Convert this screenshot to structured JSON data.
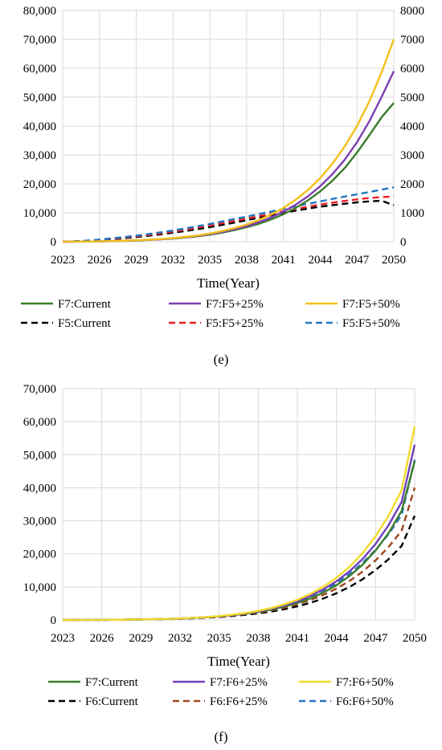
{
  "chart_data": [
    {
      "id": "e",
      "type": "line",
      "panel_label": "(e)",
      "xlabel": "Time(Year)",
      "x": [
        2023,
        2024,
        2025,
        2026,
        2027,
        2028,
        2029,
        2030,
        2031,
        2032,
        2033,
        2034,
        2035,
        2036,
        2037,
        2038,
        2039,
        2040,
        2041,
        2042,
        2043,
        2044,
        2045,
        2046,
        2047,
        2048,
        2049,
        2050
      ],
      "xticks": [
        2023,
        2026,
        2029,
        2032,
        2035,
        2038,
        2041,
        2044,
        2047,
        2050
      ],
      "xlim": [
        2023,
        2050
      ],
      "ylim_left": [
        0,
        80000
      ],
      "yticks_left": [
        0,
        10000,
        20000,
        30000,
        40000,
        50000,
        60000,
        70000,
        80000
      ],
      "ytick_labels_left": [
        "0",
        "10,000",
        "20,000",
        "30,000",
        "40,000",
        "50,000",
        "60,000",
        "70,000",
        "80,000"
      ],
      "ylim_right": [
        0,
        8000
      ],
      "yticks_right": [
        0,
        1000,
        2000,
        3000,
        4000,
        5000,
        6000,
        7000,
        8000
      ],
      "ytick_labels_right": [
        "0",
        "1000",
        "2000",
        "3000",
        "4000",
        "5000",
        "6000",
        "7000",
        "8000"
      ],
      "grid": true,
      "legend_position": "bottom",
      "series": [
        {
          "name": "F7:Current",
          "axis": "left",
          "style": "solid",
          "color": "#3a7d2c",
          "values": [
            0,
            20,
            60,
            120,
            200,
            300,
            430,
            600,
            820,
            1100,
            1450,
            1900,
            2450,
            3150,
            4000,
            5000,
            6200,
            7700,
            9500,
            11700,
            14300,
            17400,
            21100,
            25500,
            30800,
            36800,
            43000,
            48000
          ]
        },
        {
          "name": "F7:F5+25%",
          "axis": "left",
          "style": "solid",
          "color": "#7e3fb0",
          "values": [
            0,
            20,
            60,
            120,
            210,
            320,
            460,
            640,
            870,
            1170,
            1550,
            2030,
            2630,
            3380,
            4300,
            5400,
            6750,
            8400,
            10400,
            12800,
            15700,
            19200,
            23400,
            28400,
            34400,
            41600,
            50000,
            59000
          ]
        },
        {
          "name": "F7:F5+50%",
          "axis": "left",
          "style": "solid",
          "color": "#f4bf1b",
          "values": [
            0,
            20,
            60,
            130,
            220,
            340,
            490,
            680,
            930,
            1250,
            1660,
            2180,
            2840,
            3670,
            4700,
            5950,
            7500,
            9400,
            11700,
            14500,
            17900,
            22000,
            27000,
            33000,
            40000,
            48500,
            58500,
            70000
          ]
        },
        {
          "name": "F5:Current",
          "axis": "right",
          "style": "dashed",
          "color": "#000000",
          "values": [
            0,
            10,
            30,
            55,
            85,
            120,
            160,
            205,
            255,
            310,
            370,
            435,
            505,
            580,
            660,
            745,
            830,
            915,
            1000,
            1075,
            1145,
            1210,
            1265,
            1315,
            1360,
            1395,
            1420,
            1260
          ]
        },
        {
          "name": "F5:F5+25%",
          "axis": "right",
          "style": "dashed",
          "color": "#e82127",
          "values": [
            0,
            10,
            35,
            65,
            100,
            140,
            185,
            235,
            290,
            350,
            415,
            485,
            560,
            640,
            720,
            800,
            885,
            965,
            1050,
            1130,
            1210,
            1285,
            1350,
            1410,
            1465,
            1510,
            1545,
            1560
          ]
        },
        {
          "name": "F5:F5+50%",
          "axis": "right",
          "style": "dashed",
          "color": "#2277c0",
          "values": [
            0,
            15,
            40,
            75,
            115,
            160,
            210,
            265,
            325,
            390,
            460,
            535,
            615,
            700,
            785,
            870,
            955,
            1045,
            1135,
            1225,
            1310,
            1395,
            1480,
            1560,
            1640,
            1720,
            1800,
            1880
          ]
        }
      ]
    },
    {
      "id": "f",
      "type": "line",
      "panel_label": "(f)",
      "xlabel": "Time(Year)",
      "x": [
        2023,
        2024,
        2025,
        2026,
        2027,
        2028,
        2029,
        2030,
        2031,
        2032,
        2033,
        2034,
        2035,
        2036,
        2037,
        2038,
        2039,
        2040,
        2041,
        2042,
        2043,
        2044,
        2045,
        2046,
        2047,
        2048,
        2049,
        2050
      ],
      "xticks": [
        2023,
        2026,
        2029,
        2032,
        2035,
        2038,
        2041,
        2044,
        2047,
        2050
      ],
      "xlim": [
        2023,
        2050
      ],
      "ylim_left": [
        0,
        70000
      ],
      "yticks_left": [
        0,
        10000,
        20000,
        30000,
        40000,
        50000,
        60000,
        70000
      ],
      "ytick_labels_left": [
        "0",
        "10,000",
        "20,000",
        "30,000",
        "40,000",
        "50,000",
        "60,000",
        "70,000"
      ],
      "grid": true,
      "legend_position": "bottom",
      "series": [
        {
          "name": "F7:Current",
          "axis": "left",
          "style": "solid",
          "color": "#3a7d2c",
          "values": [
            0,
            5,
            15,
            30,
            55,
            90,
            140,
            210,
            300,
            420,
            580,
            790,
            1060,
            1400,
            1850,
            2400,
            3100,
            4000,
            5100,
            6500,
            8300,
            10500,
            13300,
            16700,
            21000,
            26300,
            33000,
            48000
          ]
        },
        {
          "name": "F7:F6+25%",
          "axis": "left",
          "style": "solid",
          "color": "#7040b8",
          "values": [
            0,
            5,
            15,
            30,
            55,
            90,
            140,
            210,
            300,
            430,
            600,
            820,
            1100,
            1480,
            1960,
            2580,
            3370,
            4380,
            5650,
            7250,
            9250,
            11700,
            14700,
            18400,
            23000,
            28700,
            35700,
            53000
          ]
        },
        {
          "name": "F7:F6+50%",
          "axis": "left",
          "style": "solid",
          "color": "#f2da27",
          "values": [
            0,
            5,
            15,
            30,
            55,
            90,
            145,
            215,
            310,
            440,
            620,
            850,
            1150,
            1550,
            2070,
            2740,
            3600,
            4700,
            6100,
            7850,
            10050,
            12750,
            16100,
            20200,
            25300,
            31600,
            39300,
            58500
          ]
        },
        {
          "name": "F6:Current",
          "axis": "left",
          "style": "dashed",
          "color": "#000000",
          "values": [
            0,
            5,
            15,
            30,
            50,
            80,
            125,
            185,
            260,
            360,
            490,
            660,
            880,
            1160,
            1520,
            1970,
            2530,
            3230,
            4100,
            5170,
            6480,
            8080,
            10000,
            12300,
            15100,
            18400,
            22400,
            31500
          ]
        },
        {
          "name": "F6:F6+25%",
          "axis": "left",
          "style": "dashed",
          "color": "#a0471f",
          "values": [
            0,
            5,
            15,
            30,
            55,
            90,
            140,
            205,
            290,
            400,
            550,
            740,
            990,
            1310,
            1720,
            2240,
            2900,
            3720,
            4750,
            6020,
            7580,
            9480,
            11800,
            14600,
            18000,
            22100,
            27000,
            40000
          ]
        },
        {
          "name": "F6:F6+50%",
          "axis": "left",
          "style": "dashed",
          "color": "#2a73c4",
          "values": [
            0,
            5,
            15,
            30,
            55,
            90,
            145,
            215,
            310,
            440,
            610,
            830,
            1120,
            1490,
            1970,
            2580,
            3350,
            4320,
            5530,
            7040,
            8900,
            11150,
            13900,
            17200,
            21200,
            26000,
            31800,
            48500
          ]
        }
      ]
    }
  ]
}
